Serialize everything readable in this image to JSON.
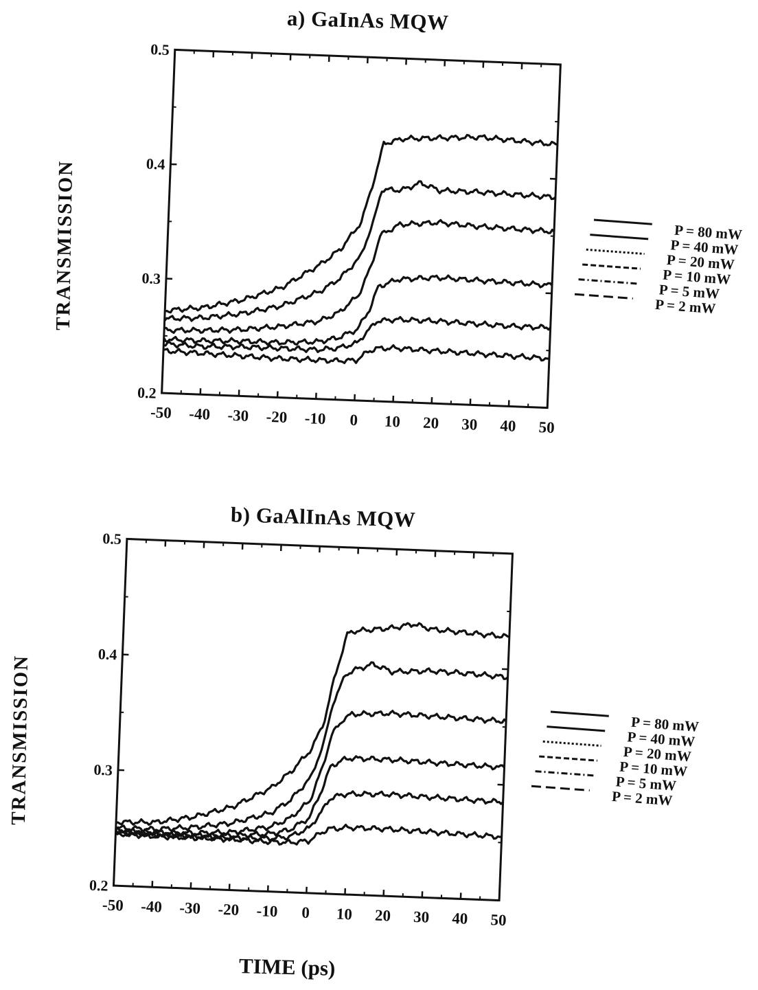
{
  "figure": {
    "xlabel_bottom": "TIME  (ps)"
  },
  "chart_data": [
    {
      "type": "line",
      "title": "a) GaInAs MQW",
      "xlabel": "",
      "ylabel": "TRANSMISSION",
      "xlim": [
        -50,
        50
      ],
      "ylim": [
        0.2,
        0.5
      ],
      "x_ticks": [
        "-50",
        "-40",
        "-30",
        "-20",
        "-10",
        "0",
        "10",
        "20",
        "30",
        "40",
        "50"
      ],
      "y_ticks": [
        "0.2",
        "0.3",
        "0.4",
        "0.5"
      ],
      "legend_position": "right",
      "series": [
        {
          "name": "P = 80 mW",
          "style": "solid",
          "x": [
            -50,
            -40,
            -30,
            -20,
            -10,
            -5,
            0,
            3,
            5,
            10,
            20,
            30,
            40,
            50
          ],
          "y": [
            0.272,
            0.276,
            0.284,
            0.296,
            0.318,
            0.332,
            0.356,
            0.395,
            0.425,
            0.43,
            0.432,
            0.434,
            0.432,
            0.43
          ]
        },
        {
          "name": "P = 40 mW",
          "style": "solid",
          "x": [
            -50,
            -40,
            -30,
            -20,
            -10,
            -5,
            0,
            3,
            5,
            10,
            15,
            20,
            30,
            40,
            50
          ],
          "y": [
            0.265,
            0.267,
            0.272,
            0.28,
            0.294,
            0.306,
            0.325,
            0.355,
            0.385,
            0.385,
            0.392,
            0.386,
            0.386,
            0.385,
            0.384
          ]
        },
        {
          "name": "P = 20 mW",
          "style": "dotted",
          "x": [
            -50,
            -40,
            -30,
            -20,
            -10,
            -5,
            0,
            3,
            5,
            10,
            20,
            30,
            40,
            50
          ],
          "y": [
            0.255,
            0.256,
            0.258,
            0.262,
            0.268,
            0.276,
            0.292,
            0.318,
            0.345,
            0.355,
            0.358,
            0.356,
            0.355,
            0.354
          ]
        },
        {
          "name": "P = 10 mW",
          "style": "dashed",
          "x": [
            -50,
            -40,
            -30,
            -20,
            -10,
            -5,
            0,
            3,
            5,
            10,
            20,
            30,
            40,
            50
          ],
          "y": [
            0.247,
            0.247,
            0.248,
            0.248,
            0.25,
            0.254,
            0.262,
            0.28,
            0.3,
            0.307,
            0.31,
            0.309,
            0.308,
            0.307
          ]
        },
        {
          "name": "P = 5 mW",
          "style": "dashdot",
          "x": [
            -50,
            -40,
            -30,
            -20,
            -10,
            -5,
            0,
            3,
            5,
            10,
            20,
            30,
            40,
            50
          ],
          "y": [
            0.243,
            0.242,
            0.243,
            0.243,
            0.243,
            0.245,
            0.25,
            0.262,
            0.27,
            0.272,
            0.272,
            0.271,
            0.27,
            0.27
          ]
        },
        {
          "name": "P = 2 mW",
          "style": "longdash",
          "x": [
            -50,
            -40,
            -30,
            -20,
            -10,
            -5,
            0,
            3,
            5,
            10,
            20,
            30,
            40,
            50
          ],
          "y": [
            0.237,
            0.236,
            0.235,
            0.234,
            0.234,
            0.234,
            0.235,
            0.243,
            0.246,
            0.247,
            0.246,
            0.245,
            0.244,
            0.243
          ]
        }
      ]
    },
    {
      "type": "line",
      "title": "b) GaAlInAs MQW",
      "xlabel": "TIME  (ps)",
      "ylabel": "TRANSMISSION",
      "xlim": [
        -50,
        50
      ],
      "ylim": [
        0.2,
        0.5
      ],
      "x_ticks": [
        "-50",
        "-40",
        "-30",
        "-20",
        "-10",
        "0",
        "10",
        "20",
        "30",
        "40",
        "50"
      ],
      "y_ticks": [
        "0.2",
        "0.3",
        "0.4",
        "0.5"
      ],
      "legend_position": "right",
      "series": [
        {
          "name": "P = 80 mW",
          "style": "solid",
          "x": [
            -50,
            -40,
            -30,
            -20,
            -10,
            -5,
            0,
            3,
            5,
            8,
            10,
            20,
            25,
            30,
            40,
            50
          ],
          "y": [
            0.255,
            0.256,
            0.262,
            0.272,
            0.29,
            0.305,
            0.325,
            0.35,
            0.385,
            0.425,
            0.428,
            0.432,
            0.436,
            0.432,
            0.43,
            0.428
          ]
        },
        {
          "name": "P = 40 mW",
          "style": "solid",
          "x": [
            -50,
            -40,
            -30,
            -20,
            -10,
            -5,
            0,
            3,
            5,
            8,
            10,
            15,
            20,
            30,
            40,
            50
          ],
          "y": [
            0.25,
            0.25,
            0.253,
            0.258,
            0.268,
            0.28,
            0.3,
            0.33,
            0.365,
            0.39,
            0.394,
            0.4,
            0.394,
            0.396,
            0.395,
            0.393
          ]
        },
        {
          "name": "P = 20 mW",
          "style": "dotted",
          "x": [
            -50,
            -40,
            -30,
            -20,
            -10,
            -5,
            0,
            3,
            5,
            8,
            10,
            20,
            30,
            40,
            50
          ],
          "y": [
            0.248,
            0.247,
            0.248,
            0.25,
            0.256,
            0.264,
            0.28,
            0.31,
            0.338,
            0.352,
            0.356,
            0.358,
            0.357,
            0.356,
            0.355
          ]
        },
        {
          "name": "P = 10 mW",
          "style": "dashed",
          "x": [
            -50,
            -40,
            -30,
            -20,
            -10,
            -5,
            0,
            3,
            5,
            8,
            10,
            20,
            30,
            40,
            50
          ],
          "y": [
            0.247,
            0.246,
            0.246,
            0.247,
            0.25,
            0.254,
            0.265,
            0.29,
            0.31,
            0.316,
            0.318,
            0.318,
            0.317,
            0.316,
            0.315
          ]
        },
        {
          "name": "P = 5 mW",
          "style": "dashdot",
          "x": [
            -50,
            -40,
            -30,
            -20,
            -10,
            -5,
            0,
            3,
            5,
            8,
            10,
            20,
            30,
            40,
            50
          ],
          "y": [
            0.246,
            0.245,
            0.245,
            0.245,
            0.246,
            0.248,
            0.256,
            0.27,
            0.282,
            0.286,
            0.287,
            0.288,
            0.287,
            0.286,
            0.285
          ]
        },
        {
          "name": "P = 2 mW",
          "style": "longdash",
          "x": [
            -50,
            -40,
            -30,
            -20,
            -10,
            -5,
            0,
            3,
            5,
            8,
            10,
            20,
            30,
            40,
            50
          ],
          "y": [
            0.245,
            0.244,
            0.244,
            0.244,
            0.243,
            0.243,
            0.245,
            0.252,
            0.256,
            0.257,
            0.258,
            0.258,
            0.257,
            0.256,
            0.255
          ]
        }
      ]
    }
  ]
}
